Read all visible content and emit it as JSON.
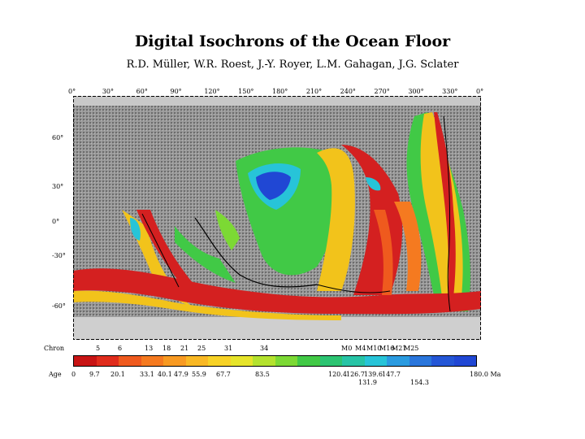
{
  "header": {
    "title": "Digital Isochrons of the Ocean Floor",
    "authors": "R.D. Müller, W.R. Roest, J.-Y. Royer, L.M. Gahagan, J.G. Sclater"
  },
  "map": {
    "lon_ticks": [
      "0°",
      "30°",
      "60°",
      "90°",
      "120°",
      "150°",
      "180°",
      "210°",
      "240°",
      "270°",
      "300°",
      "330°",
      "0°"
    ],
    "lat_ticks": [
      "60°",
      "30°",
      "0°",
      "-30°",
      "-60°"
    ],
    "colors": {
      "land": "#8a8a8a",
      "shelf": "#c8c8c8",
      "young": "#d42020",
      "mid": "#f2c31b",
      "green": "#41c946",
      "cyan": "#27c4d8",
      "blue": "#2047d4"
    }
  },
  "legend": {
    "chron_label": "Chron",
    "age_label": "Age",
    "chrons": [
      "5",
      "6",
      "13",
      "18",
      "21",
      "25",
      "31",
      "34",
      "M0",
      "M4",
      "M10",
      "M16",
      "M21",
      "M25"
    ],
    "ages_top": [
      "0",
      "9.7",
      "20.1",
      "33.1",
      "40.1",
      "47.9",
      "55.9",
      "67.7",
      "83.5",
      "120.4",
      "126.7",
      "139.6",
      "147.7",
      "180.0 Ma"
    ],
    "ages_bottom": [
      "131.9",
      "154.3"
    ],
    "colors": [
      "#c81414",
      "#e02c1c",
      "#ef5a1e",
      "#f57a20",
      "#f89a22",
      "#f9b824",
      "#f7d226",
      "#e6e42a",
      "#b4e22e",
      "#7cd934",
      "#41c946",
      "#2cc472",
      "#27c4a6",
      "#27c4d8",
      "#2a9be0",
      "#2a76dc",
      "#2456d6",
      "#2047d4"
    ]
  }
}
